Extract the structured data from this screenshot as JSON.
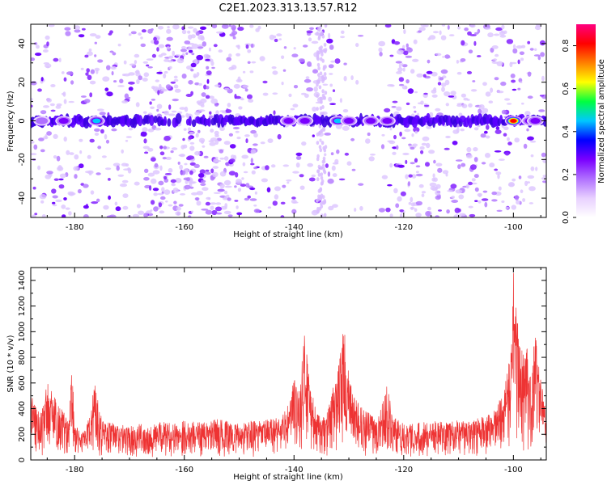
{
  "figure": {
    "title": "C2E1.2023.313.13.57.R12"
  },
  "chart_data": [
    {
      "type": "heatmap",
      "title": "",
      "xlabel": "Height of straight line (km)",
      "ylabel": "Frequency (Hz)",
      "xlim": [
        -188,
        -94
      ],
      "ylim": [
        -50,
        50
      ],
      "xticks": [
        -180,
        -160,
        -140,
        -120,
        -100
      ],
      "yticks": [
        -40,
        -20,
        0,
        20,
        40
      ],
      "colorbar": {
        "label": "Normalized spectral amplitude",
        "range": [
          0,
          0.9
        ],
        "ticks": [
          0.0,
          0.2,
          0.4,
          0.6,
          0.8
        ],
        "colors": [
          "#ffffff",
          "#e8d0ff",
          "#b070ff",
          "#7a00ff",
          "#0000ff",
          "#00c8ff",
          "#00ff40",
          "#ffff00",
          "#ff8000",
          "#ff0000",
          "#ff0080"
        ]
      },
      "features": {
        "carrier_band_hz": 0,
        "band_hotspots": [
          {
            "x": -186,
            "amp": 0.25
          },
          {
            "x": -182,
            "amp": 0.3
          },
          {
            "x": -176,
            "amp": 0.45
          },
          {
            "x": -141,
            "amp": 0.35
          },
          {
            "x": -138,
            "amp": 0.4
          },
          {
            "x": -132,
            "amp": 0.55
          },
          {
            "x": -130,
            "amp": 0.35
          },
          {
            "x": -126,
            "amp": 0.4
          },
          {
            "x": -123,
            "amp": 0.35
          },
          {
            "x": -100,
            "amp": 0.85
          },
          {
            "x": -97,
            "amp": 0.4
          },
          {
            "x": -96,
            "amp": 0.35
          }
        ]
      }
    },
    {
      "type": "line",
      "title": "",
      "xlabel": "Height of straight line (km)",
      "ylabel": "SNR (10 * v/v)",
      "xlim": [
        -188,
        -94
      ],
      "ylim": [
        0,
        1500
      ],
      "xticks": [
        -180,
        -160,
        -140,
        -120,
        -100
      ],
      "yticks": [
        0,
        200,
        400,
        600,
        800,
        1000,
        1200,
        1400
      ],
      "series": [
        {
          "color": "#ee3333",
          "x": [
            -188,
            -187,
            -186,
            -185,
            -184,
            -183,
            -182,
            -181,
            -180.5,
            -180,
            -179,
            -178,
            -177,
            -176.5,
            -176,
            -175,
            -174,
            -172,
            -170,
            -168,
            -166,
            -164,
            -162,
            -160,
            -158,
            -156,
            -154,
            -152,
            -150,
            -148,
            -146,
            -144,
            -142,
            -141,
            -140,
            -139,
            -138.5,
            -138,
            -137.5,
            -137,
            -136,
            -135,
            -134,
            -133,
            -132,
            -131.5,
            -131,
            -130.5,
            -130,
            -129,
            -128,
            -127,
            -126,
            -125,
            -124,
            -123,
            -122,
            -120,
            -118,
            -116,
            -114,
            -112,
            -110,
            -108,
            -106,
            -104,
            -103,
            -102,
            -101,
            -100.5,
            -100,
            -99.5,
            -99,
            -98,
            -97.5,
            -97,
            -96,
            -95,
            -94
          ],
          "values": [
            560,
            420,
            380,
            610,
            520,
            450,
            380,
            300,
            820,
            260,
            240,
            230,
            400,
            640,
            560,
            320,
            300,
            280,
            260,
            280,
            270,
            300,
            280,
            310,
            300,
            290,
            320,
            300,
            280,
            310,
            300,
            330,
            360,
            440,
            640,
            560,
            780,
            1060,
            820,
            600,
            380,
            320,
            360,
            560,
            700,
            900,
            1080,
            880,
            650,
            500,
            420,
            390,
            360,
            340,
            440,
            600,
            330,
            300,
            290,
            300,
            300,
            290,
            310,
            300,
            330,
            360,
            430,
            520,
            700,
            880,
            1490,
            1200,
            1000,
            820,
            900,
            640,
            1000,
            700,
            400
          ]
        }
      ]
    }
  ]
}
